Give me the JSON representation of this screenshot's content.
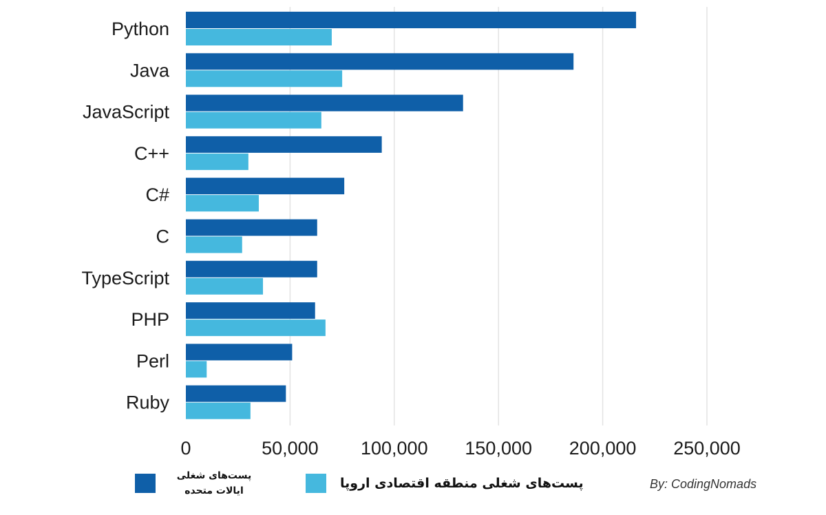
{
  "chart_data": {
    "type": "bar",
    "orientation": "horizontal",
    "categories": [
      "Python",
      "Java",
      "JavaScript",
      "C++",
      "C#",
      "C",
      "TypeScript",
      "PHP",
      "Perl",
      "Ruby"
    ],
    "series": [
      {
        "name": "پست‌های شغلی ایالات متحده",
        "color": "#0f5fa8",
        "values": [
          216000,
          186000,
          133000,
          94000,
          76000,
          63000,
          63000,
          62000,
          51000,
          48000
        ]
      },
      {
        "name": "پست‌های شغلی منطقه اقتصادی اروپا",
        "color": "#45b8de",
        "values": [
          70000,
          75000,
          65000,
          30000,
          35000,
          27000,
          37000,
          67000,
          10000,
          31000
        ]
      }
    ],
    "xlim": [
      0,
      250000
    ],
    "xticks": [
      "0",
      "50,000",
      "100,000",
      "150,000",
      "200,000",
      "250,000"
    ],
    "grid": "vertical",
    "legend_position": "bottom"
  },
  "legend": {
    "us_label": "پست‌های شغلی\nایالات متحده",
    "eu_label": "پست‌های شغلی منطقه اقتصادی اروپا"
  },
  "credit": "By: CodingNomads"
}
